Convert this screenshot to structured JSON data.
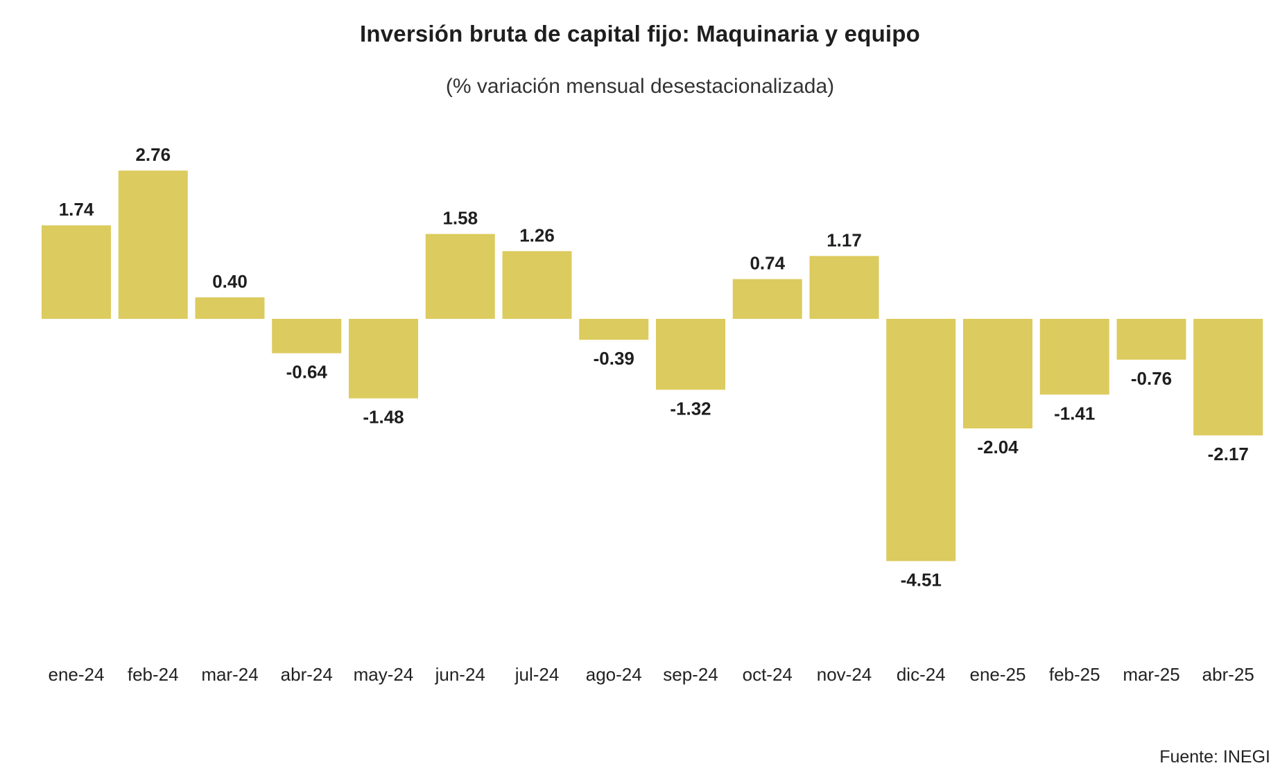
{
  "chart_data": {
    "type": "bar",
    "title": "Inversión bruta de capital fijo: Maquinaria y equipo",
    "subtitle": "(% variación mensual desestacionalizada)",
    "source": "Fuente: INEGI",
    "xlabel": "",
    "ylabel": "",
    "categories": [
      "ene-24",
      "feb-24",
      "mar-24",
      "abr-24",
      "may-24",
      "jun-24",
      "jul-24",
      "ago-24",
      "sep-24",
      "oct-24",
      "nov-24",
      "dic-24",
      "ene-25",
      "feb-25",
      "mar-25",
      "abr-25"
    ],
    "values": [
      1.74,
      2.76,
      0.4,
      -0.64,
      -1.48,
      1.58,
      1.26,
      -0.39,
      -1.32,
      0.74,
      1.17,
      -4.51,
      -2.04,
      -1.41,
      -0.76,
      -2.17
    ],
    "value_labels": [
      "1.74",
      "2.76",
      "0.40",
      "-0.64",
      "-1.48",
      "1.58",
      "1.26",
      "-0.39",
      "-1.32",
      "0.74",
      "1.17",
      "-4.51",
      "-2.04",
      "-1.41",
      "-0.76",
      "-2.17"
    ],
    "ylim": [
      -5,
      3
    ],
    "grid": false,
    "legend": "none",
    "bar_color": "#dccb5e"
  }
}
